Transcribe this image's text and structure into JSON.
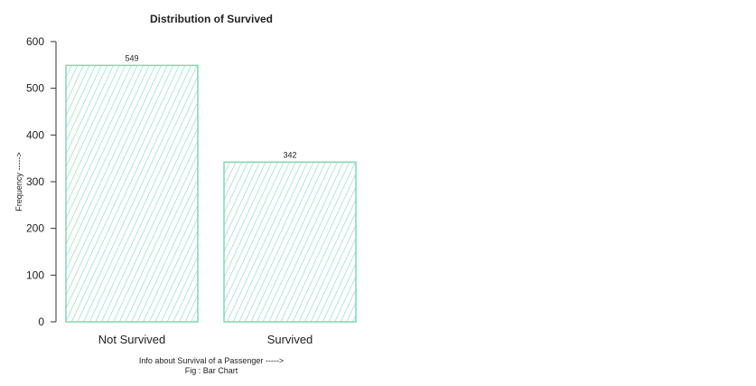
{
  "chart_data": {
    "type": "bar",
    "title": "Distribution of Survived",
    "categories": [
      "Not Survived",
      "Survived"
    ],
    "values": [
      549,
      342
    ],
    "ylabel": "Frequency ----->",
    "xlabel": "Info about Survival of a Passenger ----->",
    "caption": "Fig : Bar Chart",
    "ylim": [
      0,
      600
    ],
    "yticks": [
      0,
      100,
      200,
      300,
      400,
      500,
      600
    ],
    "grid": false,
    "bar_style": "hatched",
    "bar_color": "#7fd9b4"
  }
}
